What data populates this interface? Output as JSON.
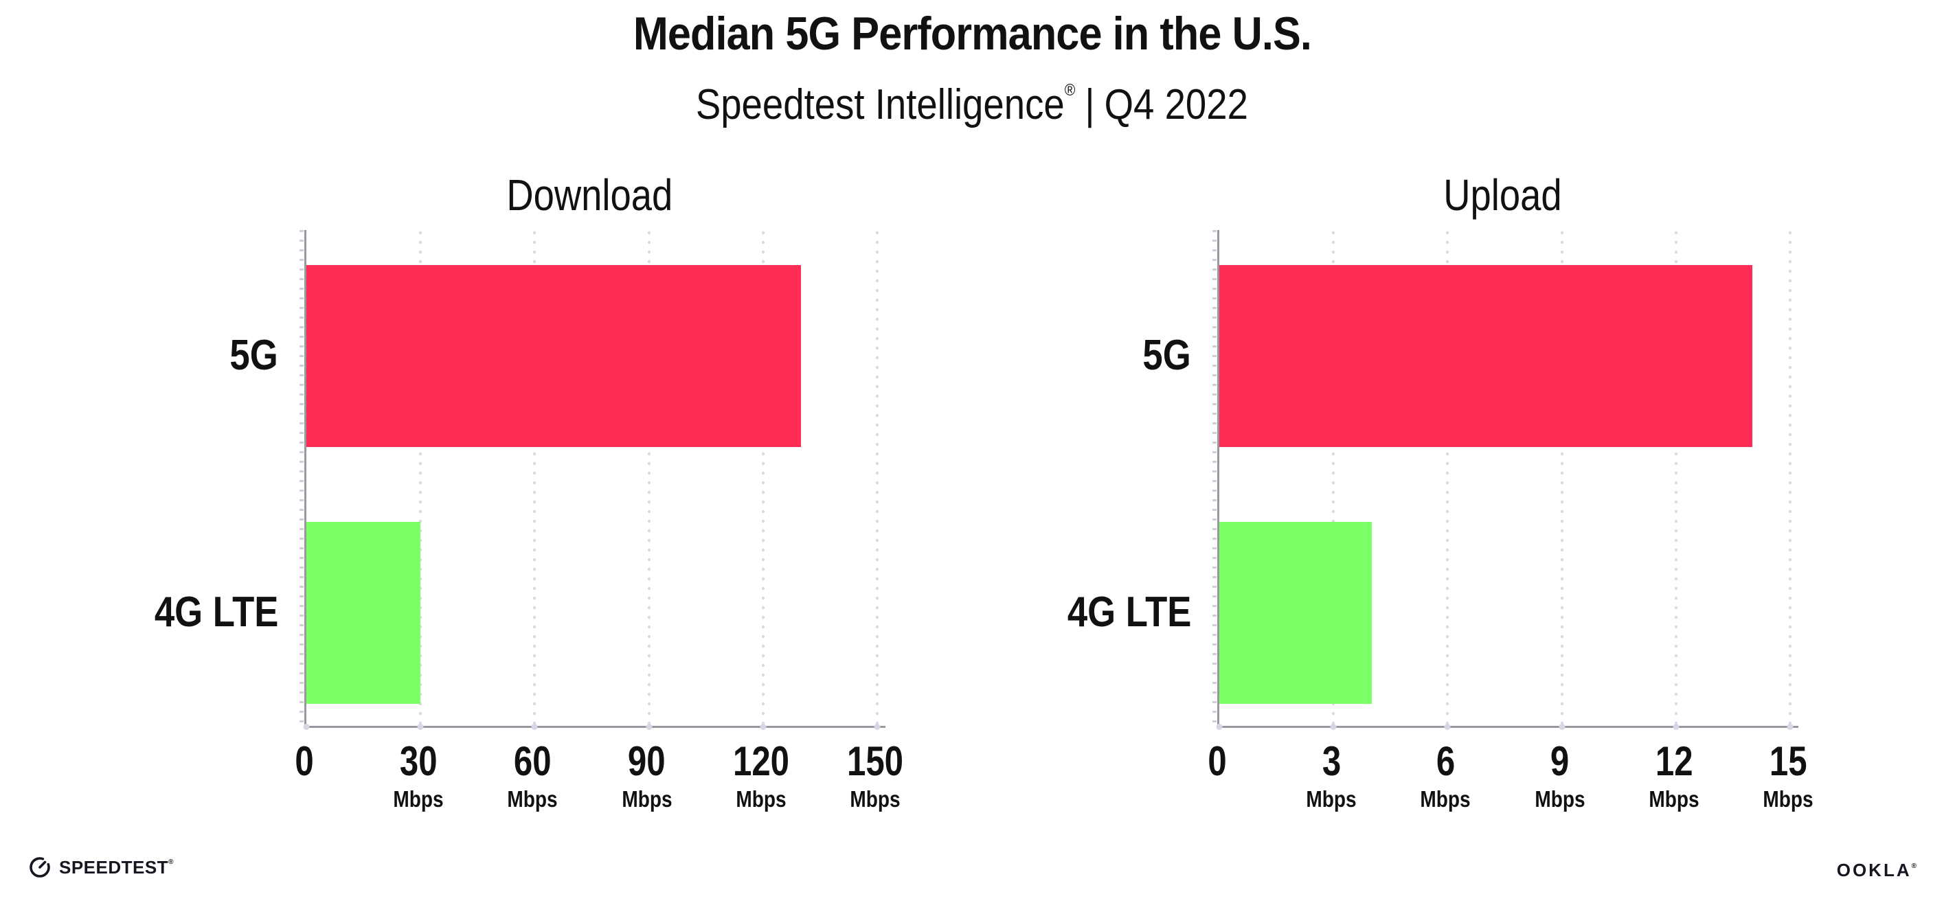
{
  "header": {
    "title": "Median 5G Performance in the U.S.",
    "subtitle_brand": "Speedtest Intelligence",
    "subtitle_mark": "®",
    "subtitle_separator": "|",
    "subtitle_period": "Q4 2022"
  },
  "chart_data": [
    {
      "type": "bar",
      "orientation": "horizontal",
      "title": "Download",
      "categories": [
        "5G",
        "4G LTE"
      ],
      "values": [
        130,
        30
      ],
      "unit": "Mbps",
      "xlabel": "",
      "ylabel": "",
      "xlim": [
        0,
        150
      ],
      "xticks": [
        0,
        30,
        60,
        90,
        120,
        150
      ],
      "bar_colors": [
        "#FF2D55",
        "#7DFF66"
      ],
      "grid": "dotted vertical gridlines at each tick",
      "legend_position": "none"
    },
    {
      "type": "bar",
      "orientation": "horizontal",
      "title": "Upload",
      "categories": [
        "5G",
        "4G LTE"
      ],
      "values": [
        14,
        4
      ],
      "unit": "Mbps",
      "xlabel": "",
      "ylabel": "",
      "xlim": [
        0,
        15
      ],
      "xticks": [
        0,
        3,
        6,
        9,
        12,
        15
      ],
      "bar_colors": [
        "#FF2D55",
        "#7DFF66"
      ],
      "grid": "dotted vertical gridlines at each tick",
      "legend_position": "none"
    }
  ],
  "footer": {
    "speedtest_label": "SPEEDTEST",
    "speedtest_mark": "®",
    "ookla_label": "OOKLA",
    "ookla_mark": "®"
  },
  "colors": {
    "bar_5g": "#FF2D55",
    "bar_4g_lte": "#7DFF66",
    "axis": "#98989F",
    "gridline": "#DADAE8",
    "text": "#111111",
    "background": "#FFFFFF"
  }
}
